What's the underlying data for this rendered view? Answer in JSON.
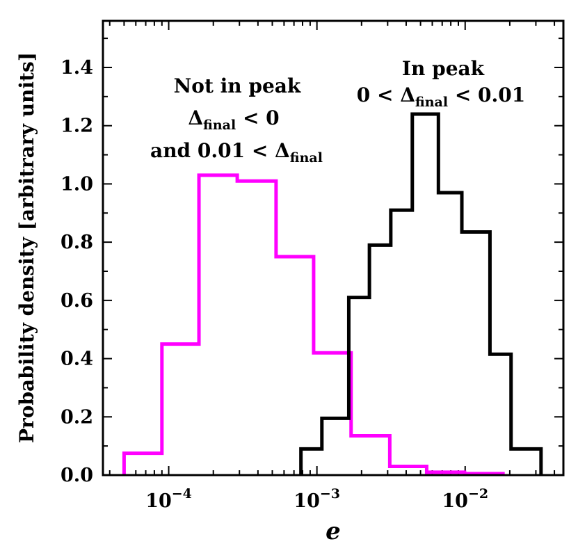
{
  "chart_data": {
    "type": "histogram",
    "xscale": "log",
    "xlabel": "e",
    "ylabel": "Probability density [arbitrary units]",
    "xlim": [
      3.6e-05,
      0.046
    ],
    "ylim": [
      0.0,
      1.56
    ],
    "y_ticks": [
      "0.0",
      "0.2",
      "0.4",
      "0.6",
      "0.8",
      "1.0",
      "1.2",
      "1.4"
    ],
    "x_ticks": [
      {
        "base": "10",
        "exp": "−4"
      },
      {
        "base": "10",
        "exp": "−3"
      },
      {
        "base": "10",
        "exp": "−2"
      }
    ],
    "series": [
      {
        "name": "Not in peak",
        "color": "#ff00ff",
        "bin_edges": [
          5e-05,
          9e-05,
          0.00016,
          0.00029,
          0.00053,
          0.00095,
          0.0017,
          0.0031,
          0.0055,
          0.0099,
          0.018
        ],
        "values": [
          0.075,
          0.45,
          1.03,
          1.01,
          0.75,
          0.42,
          0.135,
          0.03,
          0.01,
          0.005
        ]
      },
      {
        "name": "In peak",
        "color": "#000000",
        "bin_edges": [
          0.00078,
          0.00108,
          0.00164,
          0.00226,
          0.00315,
          0.0044,
          0.0066,
          0.0095,
          0.0147,
          0.0204,
          0.0325
        ],
        "values": [
          0.09,
          0.195,
          0.61,
          0.79,
          0.91,
          1.24,
          0.97,
          0.835,
          0.415,
          0.09
        ]
      }
    ],
    "annotations": {
      "not_in_peak": {
        "line1": "Not in peak",
        "line2_sym": "Δ",
        "line2_sub": "final",
        "line2_rest": " < 0",
        "line3_pre": "and 0.01 < ",
        "line3_sym": "Δ",
        "line3_sub": "final"
      },
      "in_peak": {
        "line1": "In peak",
        "line2_pre": "0 < ",
        "line2_sym": "Δ",
        "line2_sub": "final",
        "line2_rest": " < 0.01"
      }
    }
  }
}
